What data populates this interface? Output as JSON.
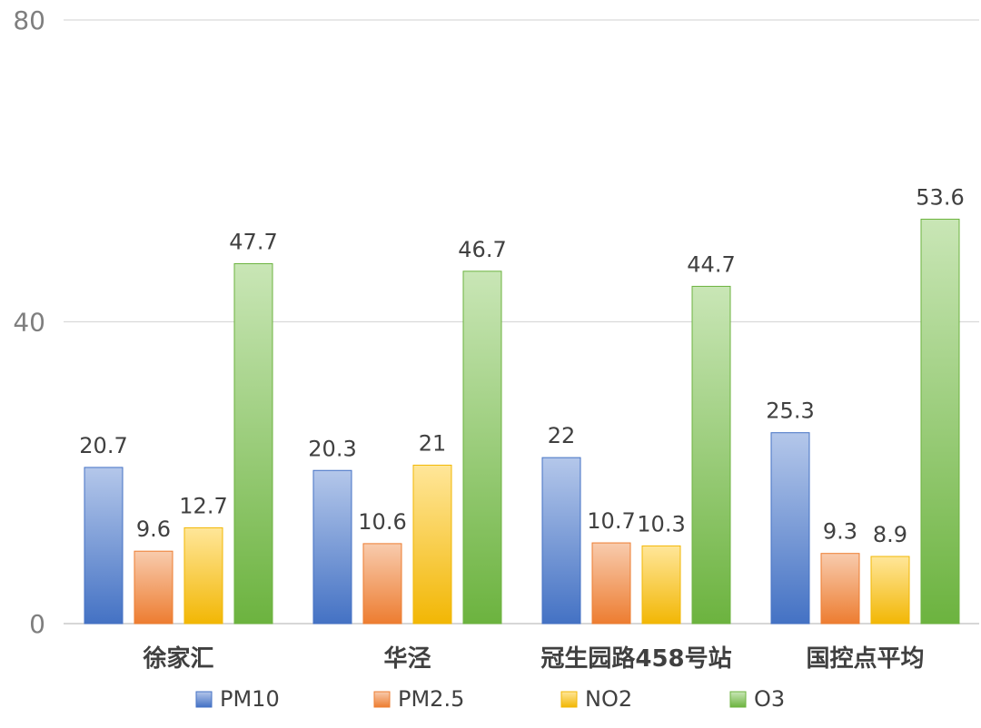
{
  "chart_data": {
    "type": "bar",
    "title": "",
    "xlabel": "",
    "ylabel": "",
    "ylim": [
      0,
      80
    ],
    "yticks": [
      0,
      40,
      80
    ],
    "grid": true,
    "legend_position": "bottom",
    "categories": [
      "徐家汇",
      "华泾",
      "冠生园路458号站",
      "国控点平均"
    ],
    "series": [
      {
        "name": "PM10",
        "color_top": "#b4c7ea",
        "color_bottom": "#4472c4",
        "values": [
          20.7,
          20.3,
          22,
          25.3
        ],
        "labels": [
          "20.7",
          "20.3",
          "22",
          "25.3"
        ]
      },
      {
        "name": "PM2.5",
        "color_top": "#f8cbad",
        "color_bottom": "#ed7d31",
        "values": [
          9.6,
          10.6,
          10.7,
          9.3
        ],
        "labels": [
          "9.6",
          "10.6",
          "10.7",
          "9.3"
        ]
      },
      {
        "name": "NO2",
        "color_top": "#ffe699",
        "color_bottom": "#f2b705",
        "values": [
          12.7,
          21,
          10.3,
          8.9
        ],
        "labels": [
          "12.7",
          "21",
          "10.3",
          "8.9"
        ]
      },
      {
        "name": "O3",
        "color_top": "#c9e6b6",
        "color_bottom": "#6cb33f",
        "values": [
          47.7,
          46.7,
          44.7,
          53.6
        ],
        "labels": [
          "47.7",
          "46.7",
          "44.7",
          "53.6"
        ]
      }
    ]
  }
}
